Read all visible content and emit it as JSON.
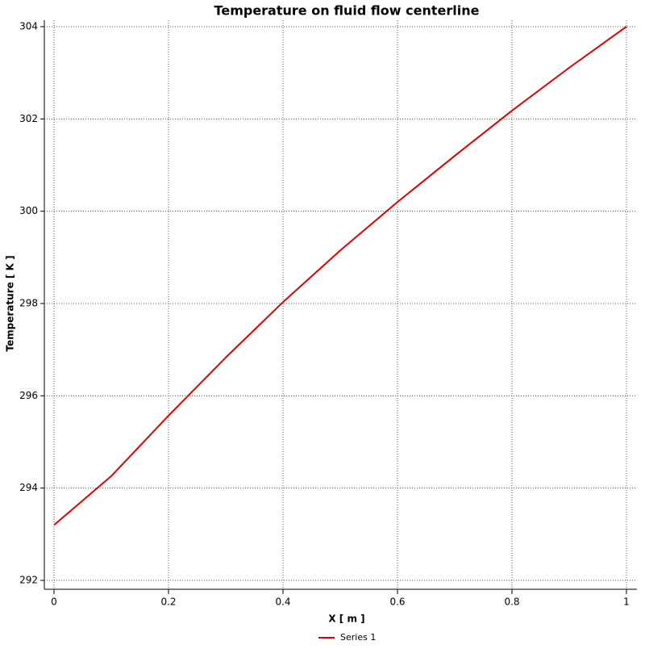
{
  "chart_data": {
    "type": "line",
    "title": "Temperature on fluid flow centerline",
    "x_label": "X [ m ]",
    "y_label": "Temperature [ K ]",
    "x": [
      0,
      0.05,
      0.1,
      0.2,
      0.3,
      0.4,
      0.5,
      0.6,
      0.7,
      0.8,
      0.9,
      1
    ],
    "series": [
      {
        "name": "Series 1",
        "color": "#e00000",
        "values": [
          293.2,
          293.73,
          294.26,
          295.57,
          296.83,
          298.03,
          299.15,
          300.2,
          301.2,
          302.18,
          303.11,
          304.0
        ]
      }
    ],
    "xlim": [
      0,
      1
    ],
    "xticks": [
      0,
      0.2,
      0.4,
      0.6,
      0.8,
      1
    ],
    "ylim": [
      292,
      304
    ],
    "yticks": [
      292,
      294,
      296,
      298,
      300,
      302,
      304
    ],
    "grid": true,
    "legend": "bottom"
  }
}
